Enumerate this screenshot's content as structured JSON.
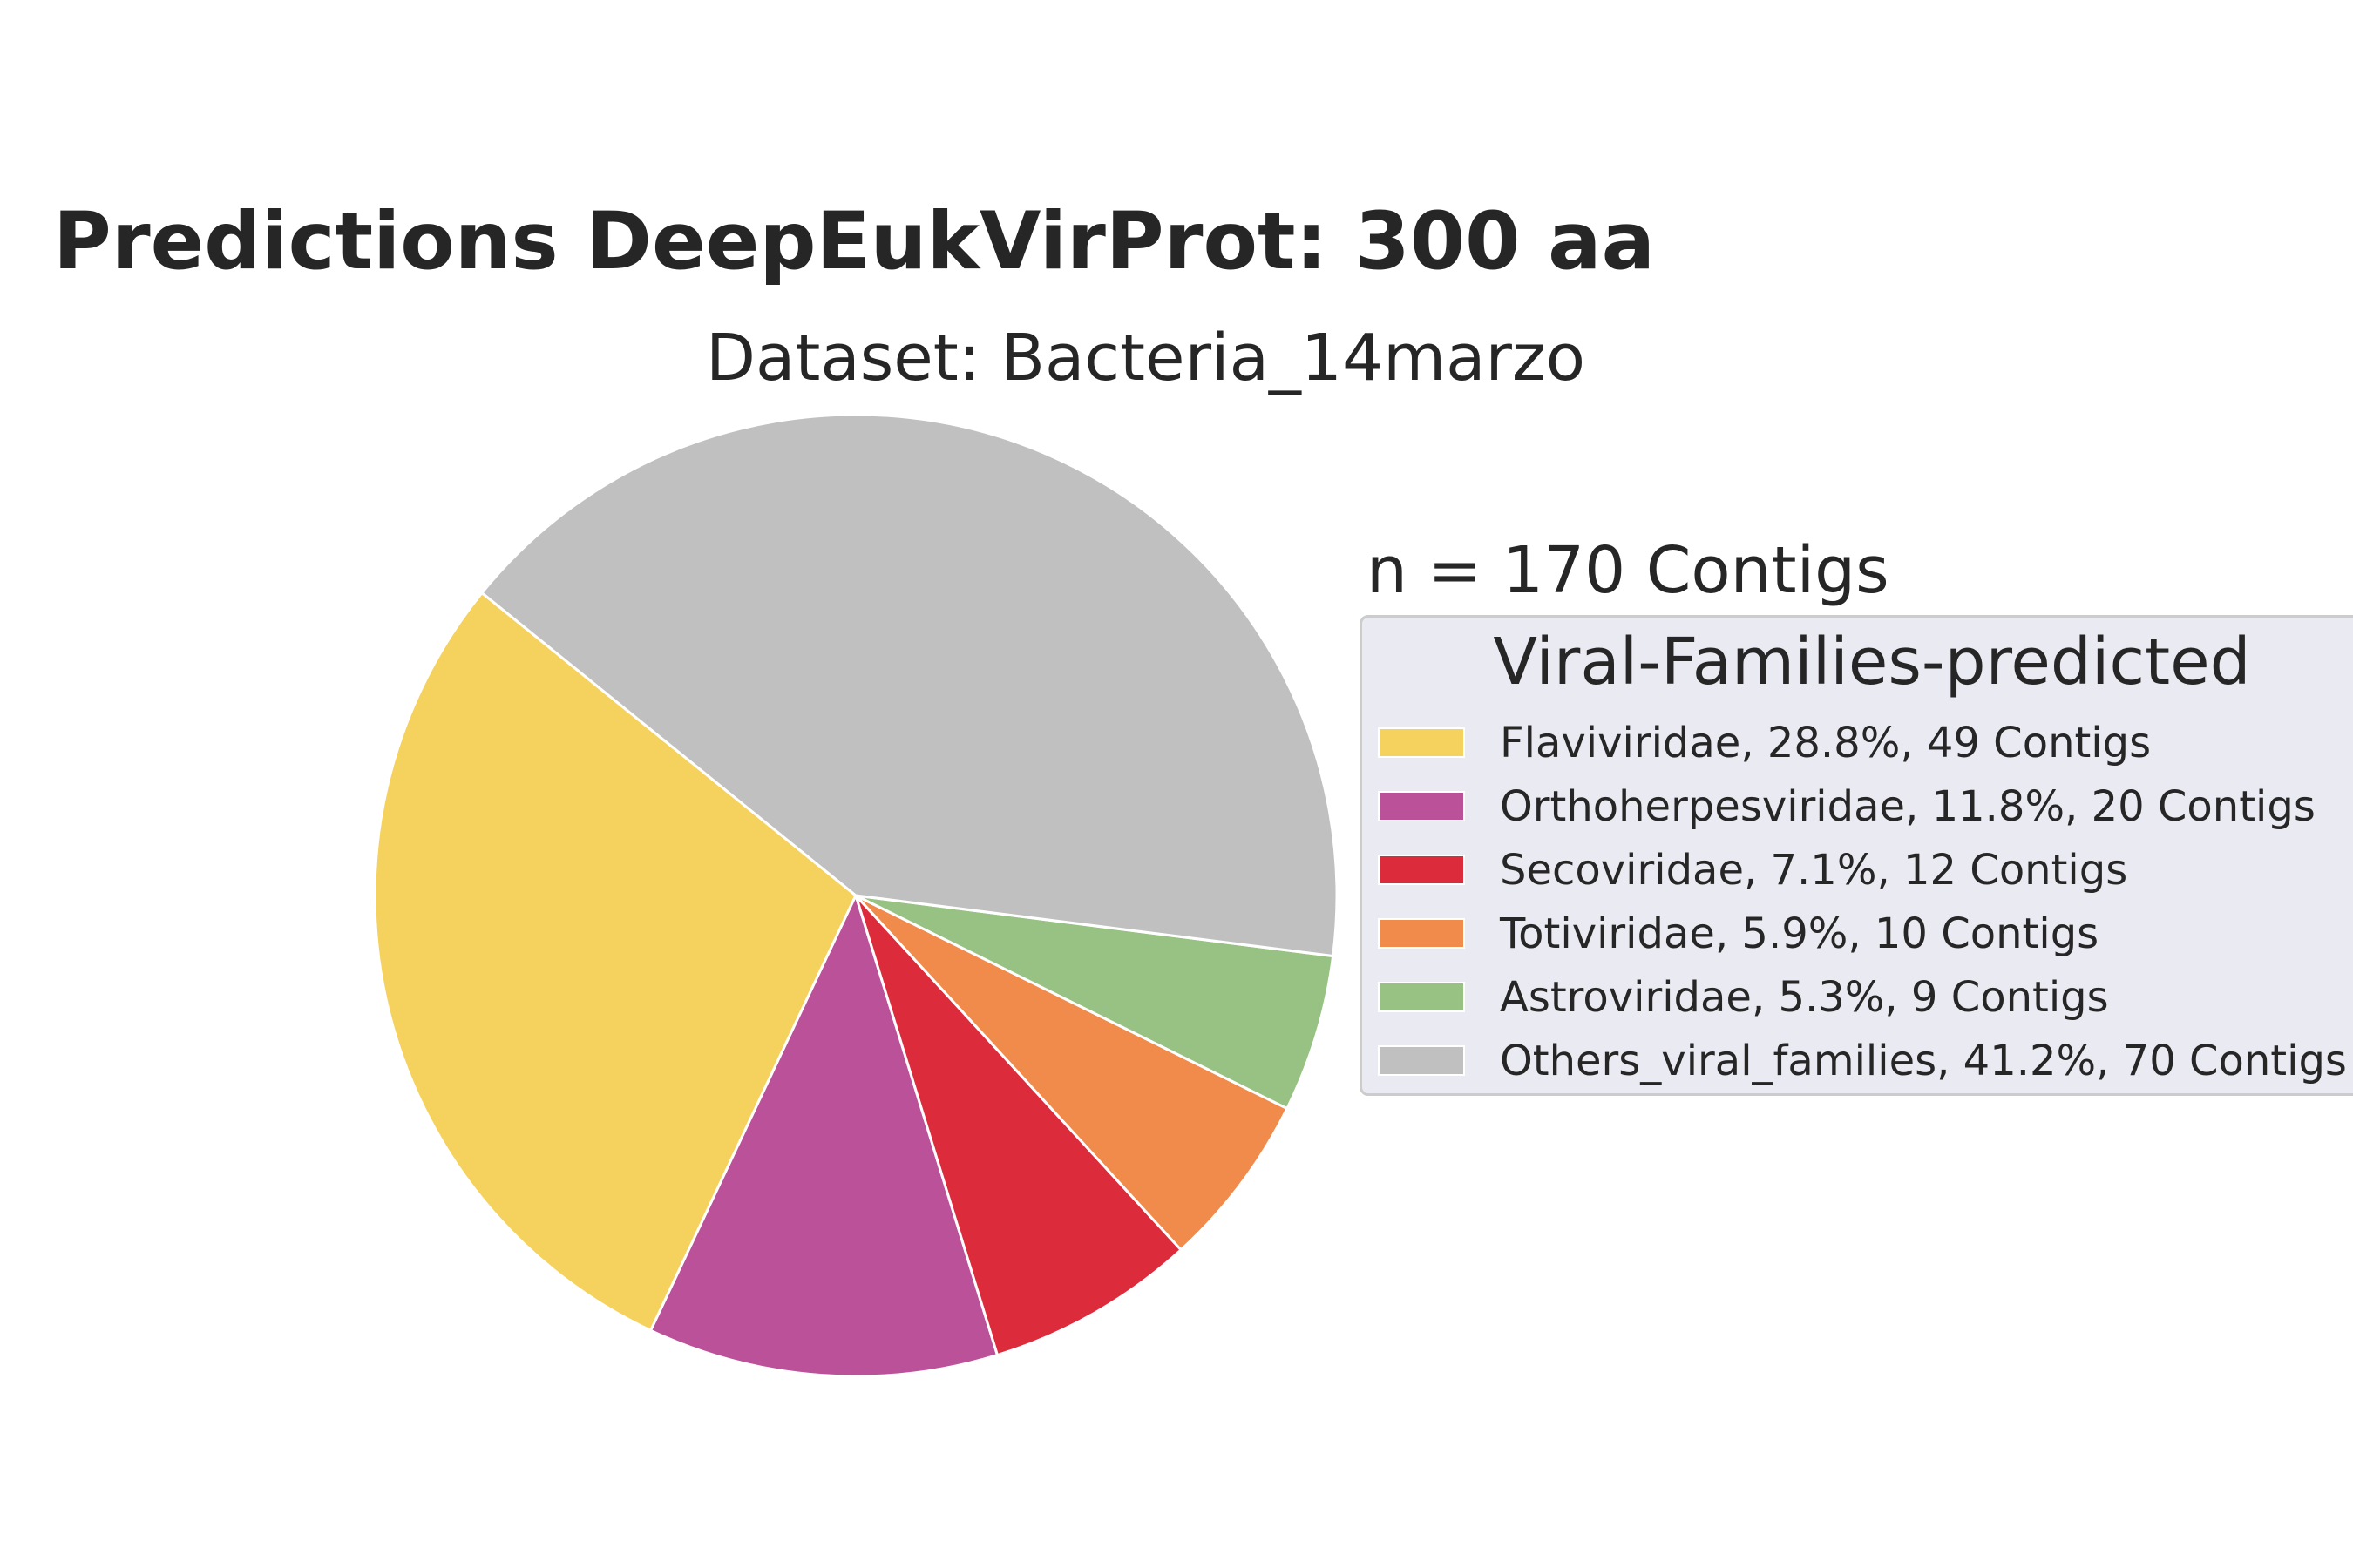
{
  "chart_data": {
    "type": "pie",
    "title": "Predictions DeepEukVirProt: 300 aa",
    "subtitle": "Dataset: Bacteria_14marzo",
    "annotation": "n = 170 Contigs",
    "legend": {
      "title": "Viral-Families-predicted",
      "placement": "right"
    },
    "slices": [
      {
        "label": "Flaviviridae, 28.8%, 49 Contigs",
        "name": "Flaviviridae",
        "percent": 28.8,
        "count": 49,
        "color": "#f5d25e"
      },
      {
        "label": "Orthoherpesviridae, 11.8%, 20 Contigs",
        "name": "Orthoherpesviridae",
        "percent": 11.8,
        "count": 20,
        "color": "#bb5198"
      },
      {
        "label": "Secoviridae, 7.1%, 12 Contigs",
        "name": "Secoviridae",
        "percent": 7.1,
        "count": 12,
        "color": "#dc2c3c"
      },
      {
        "label": "Totiviridae, 5.9%, 10 Contigs",
        "name": "Totiviridae",
        "percent": 5.9,
        "count": 10,
        "color": "#f08b4c"
      },
      {
        "label": "Astroviridae, 5.3%, 9 Contigs",
        "name": "Astroviridae",
        "percent": 5.3,
        "count": 9,
        "color": "#97c283"
      },
      {
        "label": "Others_viral_families, 41.2%, 70 Contigs",
        "name": "Others_viral_families",
        "percent": 41.2,
        "count": 70,
        "color": "#c0c0c0"
      }
    ]
  }
}
